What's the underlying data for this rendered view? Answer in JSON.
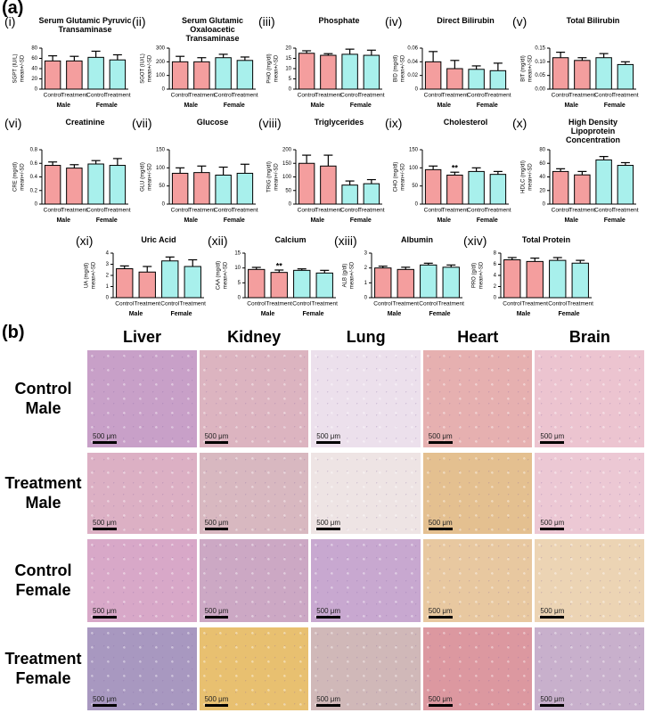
{
  "panel_a_label": "(a)",
  "panel_b_label": "(b)",
  "chart_data": [
    {
      "type": "bar",
      "label": "(i)",
      "title": "Serum Glutamic Pyruvic Transaminase",
      "ylabel": [
        "SGPT (IU/L)",
        "mean+/-SD"
      ],
      "categories": [
        "Control",
        "Treatment",
        "Control",
        "Treatment"
      ],
      "groups": [
        "Male",
        "Female"
      ],
      "values": [
        55,
        55,
        62,
        57
      ],
      "errors": [
        10,
        9,
        12,
        10
      ],
      "colors": [
        "#f49e9e",
        "#f49e9e",
        "#a8f0ec",
        "#a8f0ec"
      ],
      "ylim": [
        0,
        80
      ],
      "yticks": [
        0,
        20,
        40,
        60,
        80
      ]
    },
    {
      "type": "bar",
      "label": "(ii)",
      "title": "Serum Glutamic Oxaloacetic Transaminase",
      "ylabel": [
        "SGOT (IU/L)",
        "mean+/-SD"
      ],
      "categories": [
        "Control",
        "Treatment",
        "Control",
        "Treatment"
      ],
      "groups": [
        "Male",
        "Female"
      ],
      "values": [
        200,
        200,
        230,
        210
      ],
      "errors": [
        40,
        30,
        25,
        25
      ],
      "colors": [
        "#f49e9e",
        "#f49e9e",
        "#a8f0ec",
        "#a8f0ec"
      ],
      "ylim": [
        0,
        300
      ],
      "yticks": [
        0,
        100,
        200,
        300
      ]
    },
    {
      "type": "bar",
      "label": "(iii)",
      "title": "Phosphate",
      "ylabel": [
        "PHO (mg/dl)",
        "mean+/-SD"
      ],
      "categories": [
        "Control",
        "Treatment",
        "Control",
        "Treatment"
      ],
      "groups": [
        "Male",
        "Female"
      ],
      "values": [
        17.5,
        16.5,
        17,
        16.5
      ],
      "errors": [
        1.2,
        0.8,
        2.5,
        2.5
      ],
      "colors": [
        "#f49e9e",
        "#f49e9e",
        "#a8f0ec",
        "#a8f0ec"
      ],
      "ylim": [
        0,
        20
      ],
      "yticks": [
        0,
        5,
        10,
        15,
        20
      ]
    },
    {
      "type": "bar",
      "label": "(iv)",
      "title": "Direct Bilirubin",
      "ylabel": [
        "BID (mg/dl)",
        "mean+/-SD"
      ],
      "categories": [
        "Control",
        "Treatment",
        "Control",
        "Treatment"
      ],
      "groups": [
        "Male",
        "Female"
      ],
      "values": [
        0.04,
        0.03,
        0.029,
        0.027
      ],
      "errors": [
        0.015,
        0.012,
        0.005,
        0.011
      ],
      "colors": [
        "#f49e9e",
        "#f49e9e",
        "#a8f0ec",
        "#a8f0ec"
      ],
      "ylim": [
        0,
        0.06
      ],
      "yticks": [
        0,
        0.02,
        0.04,
        0.06
      ]
    },
    {
      "type": "bar",
      "label": "(v)",
      "title": "Total Bilirubin",
      "ylabel": [
        "BIT (mg/dl)",
        "mean+/-SD"
      ],
      "categories": [
        "Control",
        "Treatment",
        "Control",
        "Treatment"
      ],
      "groups": [
        "Male",
        "Female"
      ],
      "values": [
        0.115,
        0.105,
        0.115,
        0.09
      ],
      "errors": [
        0.02,
        0.01,
        0.015,
        0.01
      ],
      "colors": [
        "#f49e9e",
        "#f49e9e",
        "#a8f0ec",
        "#a8f0ec"
      ],
      "ylim": [
        0,
        0.15
      ],
      "yticks": [
        {
          "value": 0,
          "label": "0.00"
        },
        0.05,
        {
          "value": 0.1,
          "label": "0.10"
        },
        0.15
      ]
    },
    {
      "type": "bar",
      "label": "(vi)",
      "title": "Creatinine",
      "ylabel": [
        "CRE (mg/dl)",
        "mean+/-SD"
      ],
      "categories": [
        "Control",
        "Treatment",
        "Control",
        "Treatment"
      ],
      "groups": [
        "Male",
        "Female"
      ],
      "values": [
        0.57,
        0.53,
        0.59,
        0.57
      ],
      "errors": [
        0.05,
        0.05,
        0.05,
        0.1
      ],
      "colors": [
        "#f49e9e",
        "#f49e9e",
        "#a8f0ec",
        "#a8f0ec"
      ],
      "ylim": [
        0,
        0.8
      ],
      "yticks": [
        0,
        0.2,
        0.4,
        0.6,
        0.8
      ]
    },
    {
      "type": "bar",
      "label": "(vii)",
      "title": "Glucose",
      "ylabel": [
        "GLU (mg/dl)",
        "mean+/-SD"
      ],
      "categories": [
        "Control",
        "Treatment",
        "Control",
        "Treatment"
      ],
      "groups": [
        "Male",
        "Female"
      ],
      "values": [
        85,
        87,
        80,
        85
      ],
      "errors": [
        15,
        18,
        22,
        25
      ],
      "colors": [
        "#f49e9e",
        "#f49e9e",
        "#a8f0ec",
        "#a8f0ec"
      ],
      "ylim": [
        0,
        150
      ],
      "yticks": [
        0,
        50,
        100,
        150
      ]
    },
    {
      "type": "bar",
      "label": "(viii)",
      "title": "Triglycerides",
      "ylabel": [
        "TRIG (mg/dl)",
        "mean+/-SD"
      ],
      "categories": [
        "Control",
        "Treatment",
        "Control",
        "Treatment"
      ],
      "groups": [
        "Male",
        "Female"
      ],
      "values": [
        150,
        140,
        70,
        75
      ],
      "errors": [
        30,
        40,
        15,
        15
      ],
      "colors": [
        "#f49e9e",
        "#f49e9e",
        "#a8f0ec",
        "#a8f0ec"
      ],
      "ylim": [
        0,
        200
      ],
      "yticks": [
        0,
        50,
        100,
        150,
        200
      ]
    },
    {
      "type": "bar",
      "label": "(ix)",
      "title": "Cholesterol",
      "ylabel": [
        "CHO (mg/dl)",
        "mean+/-SD"
      ],
      "categories": [
        "Control",
        "Treatment",
        "Control",
        "Treatment"
      ],
      "groups": [
        "Male",
        "Female"
      ],
      "values": [
        95,
        80,
        90,
        82
      ],
      "errors": [
        10,
        8,
        10,
        8
      ],
      "value_labels": [
        null,
        "**",
        null,
        null
      ],
      "colors": [
        "#f49e9e",
        "#f49e9e",
        "#a8f0ec",
        "#a8f0ec"
      ],
      "ylim": [
        0,
        150
      ],
      "yticks": [
        0,
        50,
        100,
        150
      ]
    },
    {
      "type": "bar",
      "label": "(x)",
      "title": "High Density Lipoprotein Concentration",
      "ylabel": [
        "HDLC (mg/dl)",
        "mean+/-SD"
      ],
      "categories": [
        "Control",
        "Treatment",
        "Control",
        "Treatment"
      ],
      "groups": [
        "Male",
        "Female"
      ],
      "values": [
        48,
        43,
        65,
        57
      ],
      "errors": [
        4,
        5,
        5,
        4
      ],
      "colors": [
        "#f49e9e",
        "#f49e9e",
        "#a8f0ec",
        "#a8f0ec"
      ],
      "ylim": [
        0,
        80
      ],
      "yticks": [
        0,
        20,
        40,
        60,
        80
      ]
    },
    {
      "type": "bar",
      "label": "(xi)",
      "title": "Uric Acid",
      "ylabel": [
        "UA (mg/dl)",
        "mean+/-SD"
      ],
      "categories": [
        "Control",
        "Treatment",
        "Control",
        "Treatment"
      ],
      "groups": [
        "Male",
        "Female"
      ],
      "values": [
        2.6,
        2.3,
        3.3,
        2.8
      ],
      "errors": [
        0.25,
        0.5,
        0.35,
        0.6
      ],
      "colors": [
        "#f49e9e",
        "#f49e9e",
        "#a8f0ec",
        "#a8f0ec"
      ],
      "ylim": [
        0,
        4
      ],
      "yticks": [
        0,
        1,
        2,
        3,
        4
      ]
    },
    {
      "type": "bar",
      "label": "(xii)",
      "title": "Calcium",
      "ylabel": [
        "CAA (mg/dl)",
        "mean+/-SD"
      ],
      "categories": [
        "Control",
        "Treatment",
        "Control",
        "Treatment"
      ],
      "groups": [
        "Male",
        "Female"
      ],
      "values": [
        9.5,
        8.5,
        9.2,
        8.3
      ],
      "errors": [
        0.7,
        0.8,
        0.5,
        0.9
      ],
      "value_labels": [
        null,
        "**",
        null,
        null
      ],
      "colors": [
        "#f49e9e",
        "#f49e9e",
        "#a8f0ec",
        "#a8f0ec"
      ],
      "ylim": [
        0,
        15
      ],
      "yticks": [
        0,
        5,
        10,
        15
      ]
    },
    {
      "type": "bar",
      "label": "(xiii)",
      "title": "Albumin",
      "ylabel": [
        "ALB (g/dl)",
        "mean+/-SD"
      ],
      "categories": [
        "Control",
        "Treatment",
        "Control",
        "Treatment"
      ],
      "groups": [
        "Male",
        "Female"
      ],
      "values": [
        2.0,
        1.9,
        2.2,
        2.05
      ],
      "errors": [
        0.12,
        0.15,
        0.12,
        0.15
      ],
      "colors": [
        "#f49e9e",
        "#f49e9e",
        "#a8f0ec",
        "#a8f0ec"
      ],
      "ylim": [
        0,
        3
      ],
      "yticks": [
        0,
        1,
        2,
        3
      ]
    },
    {
      "type": "bar",
      "label": "(xiv)",
      "title": "Total Protein",
      "ylabel": [
        "PRO (g/dl)",
        "mean+/-SD"
      ],
      "categories": [
        "Control",
        "Treatment",
        "Control",
        "Treatment"
      ],
      "groups": [
        "Male",
        "Female"
      ],
      "values": [
        6.8,
        6.5,
        6.7,
        6.2
      ],
      "errors": [
        0.4,
        0.6,
        0.5,
        0.5
      ],
      "colors": [
        "#f49e9e",
        "#f49e9e",
        "#a8f0ec",
        "#a8f0ec"
      ],
      "ylim": [
        0,
        8
      ],
      "yticks": [
        0,
        2,
        4,
        6,
        8
      ]
    }
  ],
  "histology": {
    "columns": [
      "Liver",
      "Kidney",
      "Lung",
      "Heart",
      "Brain"
    ],
    "rows": [
      "Control Male",
      "Treatment Male",
      "Control Female",
      "Treatment Female"
    ],
    "scale_bar": "500 μm"
  }
}
